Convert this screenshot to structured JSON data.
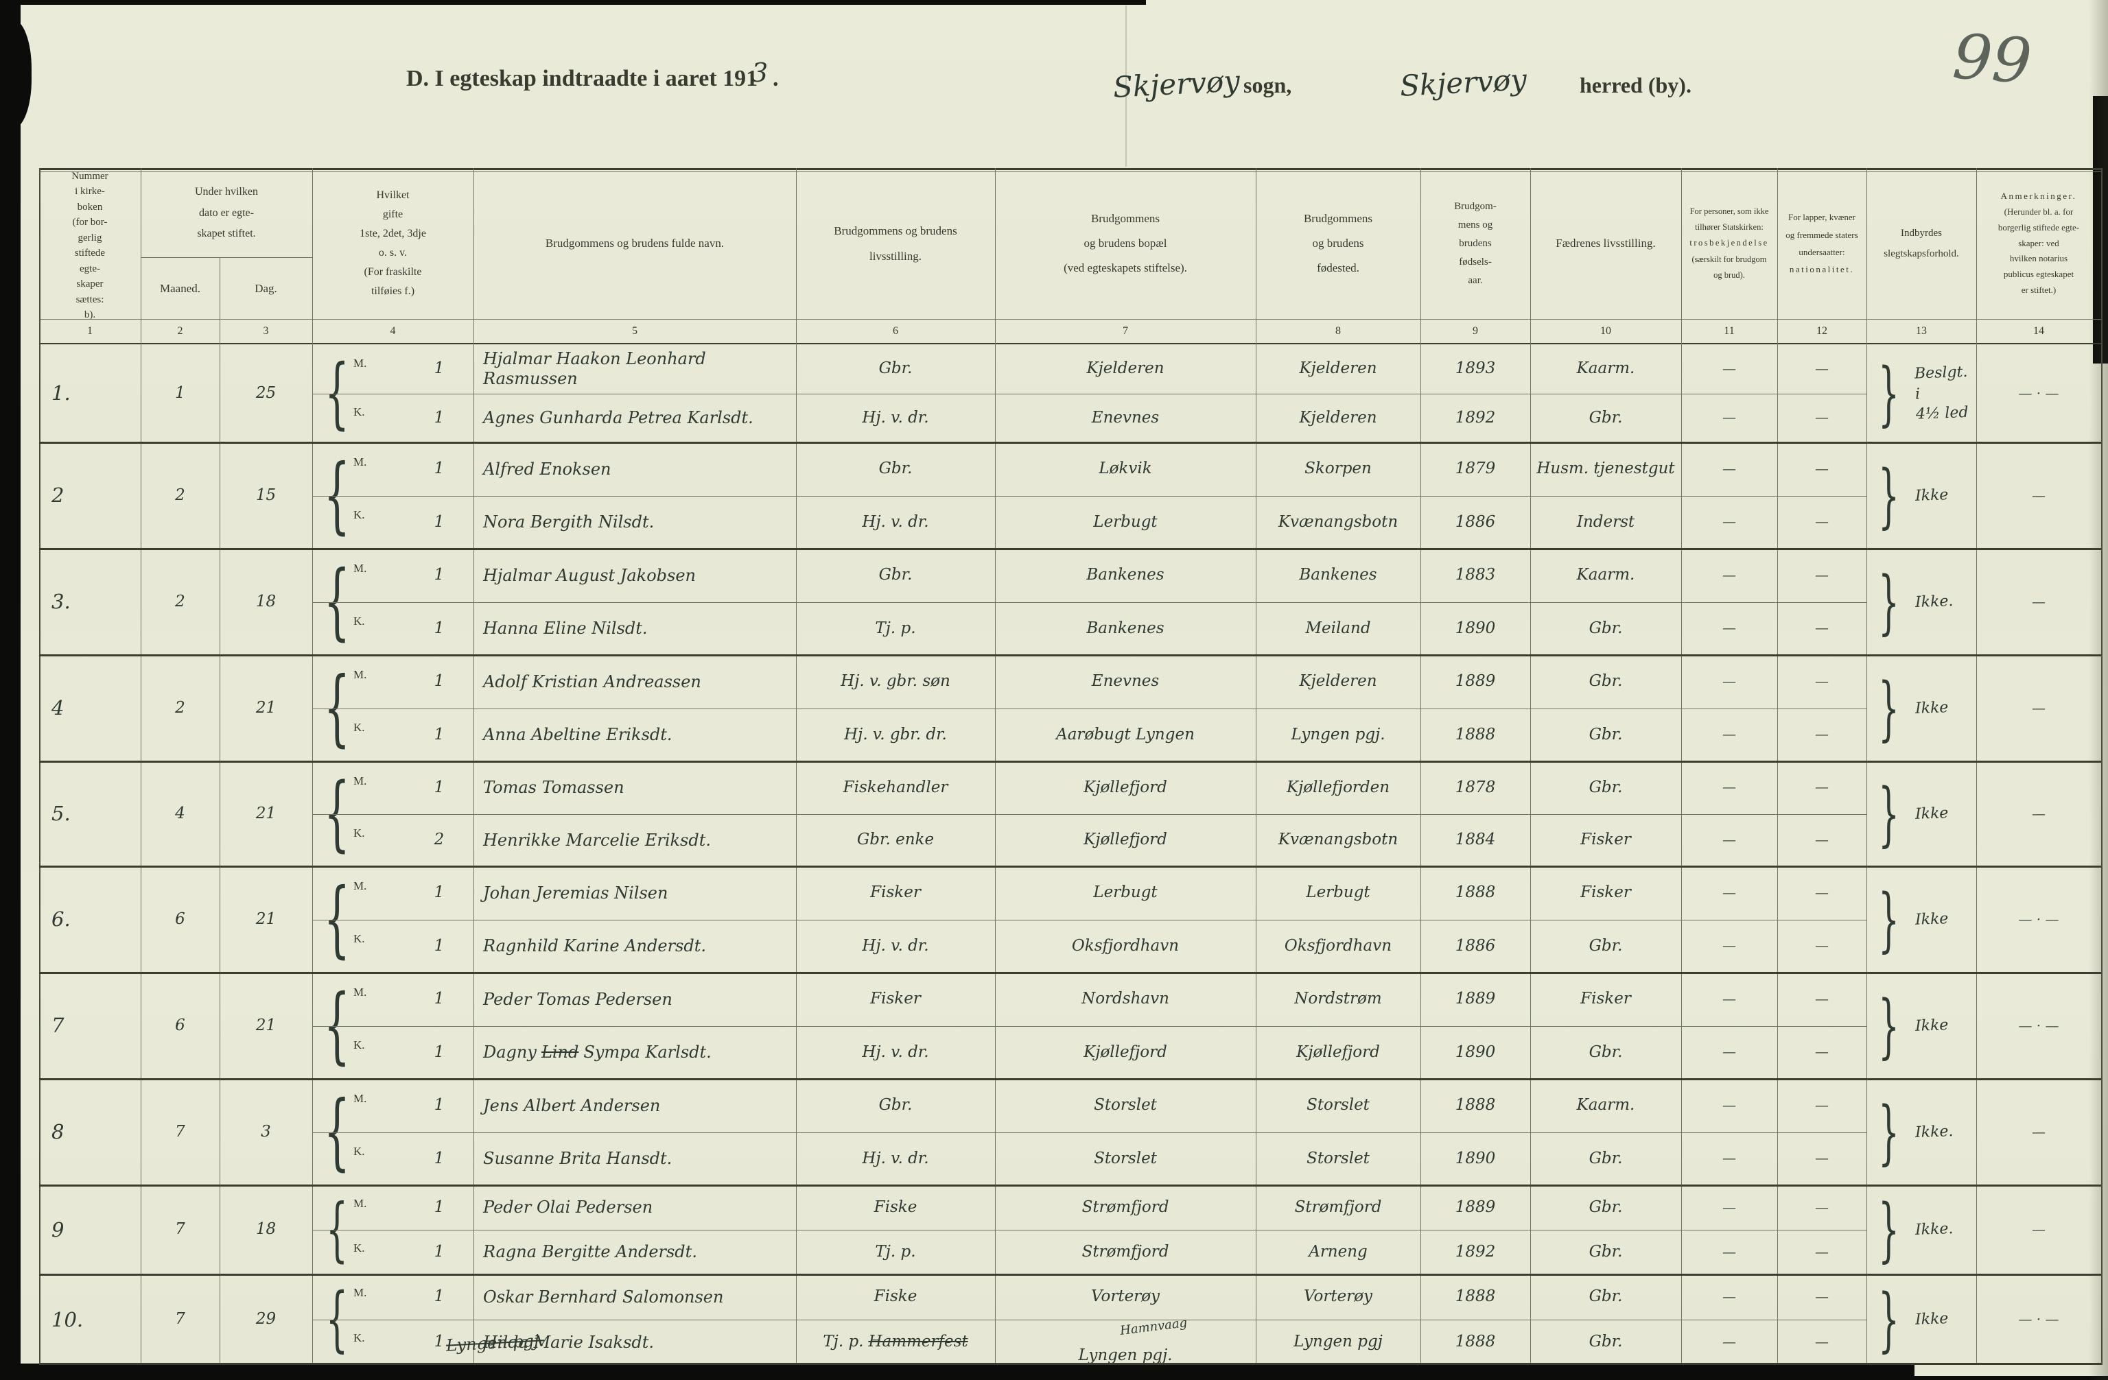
{
  "page": {
    "number": "99",
    "title": "D.  I egteskap indtraadte i aaret 191",
    "title_year_hw": "3",
    "title_suffix": " .",
    "sogn_value": "Skjervøy",
    "sogn_label": "sogn,",
    "herred_value": "Skjervøy",
    "herred_label": "herred (by).",
    "footnote_struck": "Lyngen pgj."
  },
  "table": {
    "mk_labels": [
      "M.",
      "K."
    ],
    "col_numbers": [
      "1",
      "2",
      "3",
      "4",
      "5",
      "6",
      "7",
      "8",
      "9",
      "10",
      "11",
      "12",
      "13",
      "14"
    ],
    "headers": {
      "col1": "Nummer\ni kirke-\nboken\n(for bor-\ngerlig\nstiftede\negte-\nskaper\nsættes:\nb).",
      "col2_3": "Under hvilken\ndato er egte-\nskapet stiftet.",
      "col2": "Maaned.",
      "col3": "Dag.",
      "col4": "Hvilket\ngifte\n1ste, 2det, 3dje\no. s. v.\n(For fraskilte\ntilføies f.)",
      "col5": "Brudgommens og brudens fulde navn.",
      "col6": "Brudgommens og brudens\nlivsstilling.",
      "col7": "Brudgommens\nog brudens bopæl\n(ved egteskapets stiftelse).",
      "col8": "Brudgommens\nog brudens\nfødested.",
      "col9": "Brudgom-\nmens og\nbrudens\nfødsels-\naar.",
      "col10": "Fædrenes livsstilling.",
      "col11_a": "For personer, som ikke\ntilhører Statskirken:",
      "col11_b": "trosbekjendelse",
      "col11_c": "(særskilt for brudgom\nog brud).",
      "col12_a": "For lapper, kvæner\nog fremmede staters\nundersaatter:",
      "col12_b": "nationalitet.",
      "col13": "Indbyrdes\nslegtskapsforhold.",
      "col14_a": "Anmerkninger.",
      "col14_b": "(Herunder bl. a. for\nborgerlig stiftede egte-\nskaper: ved\nhvilken notarius\npublicus egteskapet\ner stiftet.)"
    }
  },
  "rows": [
    {
      "no": "1.",
      "maaned": "1",
      "dag": "25",
      "m": {
        "gifte": "1",
        "navn": "Hjalmar Haakon Leonhard Rasmussen",
        "navn_struck": "",
        "navn_rest": "",
        "livs": "Gbr.",
        "livs_struck": "",
        "bopel": "Kjelderen",
        "bopel_super": "",
        "fodested": "Kjelderen",
        "aar": "1893",
        "faedr": "Kaarm.",
        "tros": "—",
        "nat": "—"
      },
      "k": {
        "gifte": "1",
        "navn": "Agnes Gunharda Petrea Karlsdt.",
        "navn_struck": "",
        "navn_rest": "",
        "livs": "Hj. v. dr.",
        "livs_struck": "",
        "bopel": "Enevnes",
        "bopel_super": "",
        "fodested": "Kjelderen",
        "aar": "1892",
        "faedr": "Gbr.",
        "tros": "—",
        "nat": "—"
      },
      "slegt": "Beslgt. i\n4½ led",
      "anm": "— · —"
    },
    {
      "no": "2",
      "maaned": "2",
      "dag": "15",
      "m": {
        "gifte": "1",
        "navn": "Alfred Enoksen",
        "navn_struck": "",
        "navn_rest": "",
        "livs": "Gbr.",
        "livs_struck": "",
        "bopel": "Løkvik",
        "bopel_super": "",
        "fodested": "Skorpen",
        "aar": "1879",
        "faedr": "Husm. tjenestgut",
        "tros": "—",
        "nat": "—"
      },
      "k": {
        "gifte": "1",
        "navn": "Nora Bergith Nilsdt.",
        "navn_struck": "",
        "navn_rest": "",
        "livs": "Hj. v. dr.",
        "livs_struck": "",
        "bopel": "Lerbugt",
        "bopel_super": "",
        "fodested": "Kvænangsbotn",
        "aar": "1886",
        "faedr": "Inderst",
        "tros": "—",
        "nat": "—"
      },
      "slegt": "Ikke",
      "anm": "—"
    },
    {
      "no": "3.",
      "maaned": "2",
      "dag": "18",
      "m": {
        "gifte": "1",
        "navn": "Hjalmar August Jakobsen",
        "navn_struck": "",
        "navn_rest": "",
        "livs": "Gbr.",
        "livs_struck": "",
        "bopel": "Bankenes",
        "bopel_super": "",
        "fodested": "Bankenes",
        "aar": "1883",
        "faedr": "Kaarm.",
        "tros": "—",
        "nat": "—"
      },
      "k": {
        "gifte": "1",
        "navn": "Hanna Eline Nilsdt.",
        "navn_struck": "",
        "navn_rest": "",
        "livs": "Tj. p.",
        "livs_struck": "",
        "bopel": "Bankenes",
        "bopel_super": "",
        "fodested": "Meiland",
        "aar": "1890",
        "faedr": "Gbr.",
        "tros": "—",
        "nat": "—"
      },
      "slegt": "Ikke.",
      "anm": "—"
    },
    {
      "no": "4",
      "maaned": "2",
      "dag": "21",
      "m": {
        "gifte": "1",
        "navn": "Adolf Kristian Andreassen",
        "navn_struck": "",
        "navn_rest": "",
        "livs": "Hj. v. gbr. søn",
        "livs_struck": "",
        "bopel": "Enevnes",
        "bopel_super": "",
        "fodested": "Kjelderen",
        "aar": "1889",
        "faedr": "Gbr.",
        "tros": "—",
        "nat": "—"
      },
      "k": {
        "gifte": "1",
        "navn": "Anna Abeltine Eriksdt.",
        "navn_struck": "",
        "navn_rest": "",
        "livs": "Hj. v. gbr. dr.",
        "livs_struck": "",
        "bopel": "Aarøbugt Lyngen",
        "bopel_super": "",
        "fodested": "Lyngen pgj.",
        "aar": "1888",
        "faedr": "Gbr.",
        "tros": "—",
        "nat": "—"
      },
      "slegt": "Ikke",
      "anm": "—"
    },
    {
      "no": "5.",
      "maaned": "4",
      "dag": "21",
      "m": {
        "gifte": "1",
        "navn": "Tomas Tomassen",
        "navn_struck": "",
        "navn_rest": "",
        "livs": "Fiskehandler",
        "livs_struck": "",
        "bopel": "Kjøllefjord",
        "bopel_super": "",
        "fodested": "Kjøllefjorden",
        "aar": "1878",
        "faedr": "Gbr.",
        "tros": "—",
        "nat": "—"
      },
      "k": {
        "gifte": "2",
        "navn": "Henrikke Marcelie Eriksdt.",
        "navn_struck": "",
        "navn_rest": "",
        "livs": "Gbr. enke",
        "livs_struck": "",
        "bopel": "Kjøllefjord",
        "bopel_super": "",
        "fodested": "Kvænangsbotn",
        "aar": "1884",
        "faedr": "Fisker",
        "tros": "—",
        "nat": "—"
      },
      "slegt": "Ikke",
      "anm": "—"
    },
    {
      "no": "6.",
      "maaned": "6",
      "dag": "21",
      "m": {
        "gifte": "1",
        "navn": "Johan Jeremias Nilsen",
        "navn_struck": "",
        "navn_rest": "",
        "livs": "Fisker",
        "livs_struck": "",
        "bopel": "Lerbugt",
        "bopel_super": "",
        "fodested": "Lerbugt",
        "aar": "1888",
        "faedr": "Fisker",
        "tros": "—",
        "nat": "—"
      },
      "k": {
        "gifte": "1",
        "navn": "Ragnhild Karine Andersdt.",
        "navn_struck": "",
        "navn_rest": "",
        "livs": "Hj. v. dr.",
        "livs_struck": "",
        "bopel": "Oksfjordhavn",
        "bopel_super": "",
        "fodested": "Oksfjordhavn",
        "aar": "1886",
        "faedr": "Gbr.",
        "tros": "—",
        "nat": "—"
      },
      "slegt": "Ikke",
      "anm": "— · —"
    },
    {
      "no": "7",
      "maaned": "6",
      "dag": "21",
      "m": {
        "gifte": "1",
        "navn": "Peder Tomas Pedersen",
        "navn_struck": "",
        "navn_rest": "",
        "livs": "Fisker",
        "livs_struck": "",
        "bopel": "Nordshavn",
        "bopel_super": "",
        "fodested": "Nordstrøm",
        "aar": "1889",
        "faedr": "Fisker",
        "tros": "—",
        "nat": "—"
      },
      "k": {
        "gifte": "1",
        "navn": "Dagny",
        "navn_struck": "Lind",
        "navn_rest": "Sympa Karlsdt.",
        "livs": "Hj. v. dr.",
        "livs_struck": "",
        "bopel": "Kjøllefjord",
        "bopel_super": "",
        "fodested": "Kjøllefjord",
        "aar": "1890",
        "faedr": "Gbr.",
        "tros": "—",
        "nat": "—"
      },
      "slegt": "Ikke",
      "anm": "— · —"
    },
    {
      "no": "8",
      "maaned": "7",
      "dag": "3",
      "m": {
        "gifte": "1",
        "navn": "Jens Albert Andersen",
        "navn_struck": "",
        "navn_rest": "",
        "livs": "Gbr.",
        "livs_struck": "",
        "bopel": "Storslet",
        "bopel_super": "",
        "fodested": "Storslet",
        "aar": "1888",
        "faedr": "Kaarm.",
        "tros": "—",
        "nat": "—"
      },
      "k": {
        "gifte": "1",
        "navn": "Susanne Brita Hansdt.",
        "navn_struck": "",
        "navn_rest": "",
        "livs": "Hj. v. dr.",
        "livs_struck": "",
        "bopel": "Storslet",
        "bopel_super": "",
        "fodested": "Storslet",
        "aar": "1890",
        "faedr": "Gbr.",
        "tros": "—",
        "nat": "—"
      },
      "slegt": "Ikke.",
      "anm": "—"
    },
    {
      "no": "9",
      "maaned": "7",
      "dag": "18",
      "m": {
        "gifte": "1",
        "navn": "Peder Olai Pedersen",
        "navn_struck": "",
        "navn_rest": "",
        "livs": "Fiske",
        "livs_struck": "",
        "bopel": "Strømfjord",
        "bopel_super": "",
        "fodested": "Strømfjord",
        "aar": "1889",
        "faedr": "Gbr.",
        "tros": "—",
        "nat": "—"
      },
      "k": {
        "gifte": "1",
        "navn": "Ragna Bergitte Andersdt.",
        "navn_struck": "",
        "navn_rest": "",
        "livs": "Tj. p.",
        "livs_struck": "",
        "bopel": "Strømfjord",
        "bopel_super": "",
        "fodested": "Arneng",
        "aar": "1892",
        "faedr": "Gbr.",
        "tros": "—",
        "nat": "—"
      },
      "slegt": "Ikke.",
      "anm": "—"
    },
    {
      "no": "10.",
      "maaned": "7",
      "dag": "29",
      "m": {
        "gifte": "1",
        "navn": "Oskar Bernhard Salomonsen",
        "navn_struck": "",
        "navn_rest": "",
        "livs": "Fiske",
        "livs_struck": "",
        "bopel": "Vorterøy",
        "bopel_super": "",
        "fodested": "Vorterøy",
        "aar": "1888",
        "faedr": "Gbr.",
        "tros": "—",
        "nat": "—"
      },
      "k": {
        "gifte": "1",
        "navn": "Hilda Marie Isaksdt.",
        "navn_struck": "",
        "navn_rest": "",
        "livs": "Tj. p.",
        "livs_struck": "Hammerfest",
        "bopel": "Lyngen pgj.",
        "bopel_super": "Hamnvaag",
        "fodested": "Lyngen pgj",
        "aar": "1888",
        "faedr": "Gbr.",
        "tros": "—",
        "nat": "—"
      },
      "slegt": "Ikke",
      "anm": "— · —"
    }
  ]
}
